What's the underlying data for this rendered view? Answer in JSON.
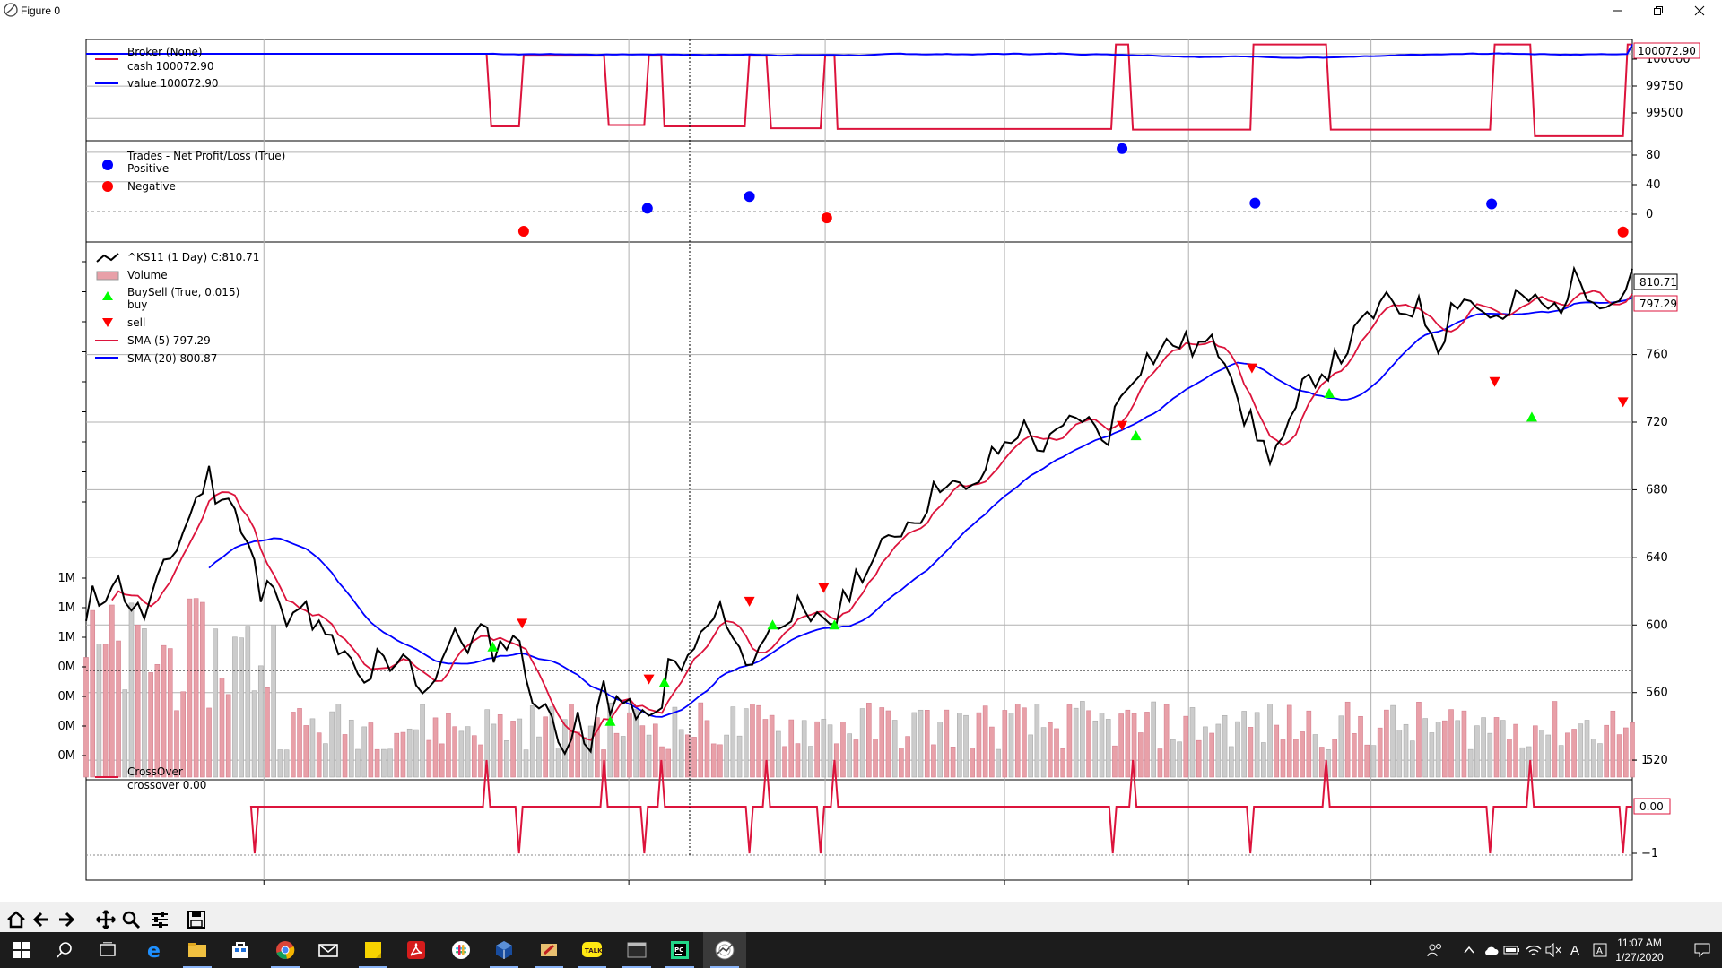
{
  "window": {
    "title": "Figure 0"
  },
  "panels": {
    "broker": {
      "legend_title": "Broker (None)",
      "cash_label": "cash 100072.90",
      "value_label": "value 100072.90",
      "y_ticks": [
        "99500",
        "99750",
        "100000"
      ],
      "last_value_tag": "100072.90"
    },
    "trades": {
      "legend_title": "Trades - Net Profit/Loss (True)",
      "positive_label": "Positive",
      "negative_label": "Negative",
      "y_ticks": [
        "0",
        "40",
        "80"
      ]
    },
    "price": {
      "legend_title": "^KS11 (1 Day) C:810.71",
      "volume_label": "Volume",
      "buysell_title": "BuySell (True, 0.015)",
      "buy_label": "buy",
      "sell_label": "sell",
      "sma5_label": "SMA (5) 797.29",
      "sma20_label": "SMA (20) 800.87",
      "y_ticks": [
        "520",
        "560",
        "600",
        "640",
        "680",
        "720",
        "760"
      ],
      "vol_ticks": [
        "0M",
        "0M",
        "0M",
        "0M",
        "1M",
        "1M",
        "1M"
      ],
      "close_tag": "810.71",
      "sma5_tag": "797.29",
      "sma20_tag": "800.87"
    },
    "crossover": {
      "legend_title": "CrossOver",
      "line_label": "crossover 0.00",
      "y_ticks": [
        "1",
        "−1"
      ],
      "last_value_tag": "0.00"
    }
  },
  "chart_data": [
    {
      "type": "line",
      "name": "broker",
      "series": [
        {
          "name": "cash",
          "color": "#dc143c",
          "segments": [
            [
              0,
              100000
            ],
            [
              0.259,
              100000
            ],
            [
              0.262,
              99440
            ],
            [
              0.28,
              99440
            ],
            [
              0.283,
              99985
            ],
            [
              0.335,
              99985
            ],
            [
              0.338,
              99450
            ],
            [
              0.361,
              99450
            ],
            [
              0.364,
              99985
            ],
            [
              0.372,
              99985
            ],
            [
              0.374,
              99440
            ],
            [
              0.426,
              99440
            ],
            [
              0.429,
              99985
            ],
            [
              0.44,
              99985
            ],
            [
              0.443,
              99425
            ],
            [
              0.475,
              99425
            ],
            [
              0.478,
              99985
            ],
            [
              0.484,
              99985
            ],
            [
              0.486,
              99420
            ],
            [
              0.663,
              99420
            ],
            [
              0.666,
              100072
            ],
            [
              0.674,
              100072
            ],
            [
              0.677,
              99415
            ],
            [
              0.753,
              99415
            ],
            [
              0.755,
              100072
            ],
            [
              0.802,
              100072
            ],
            [
              0.805,
              99415
            ],
            [
              0.908,
              99415
            ],
            [
              0.911,
              100072
            ],
            [
              0.934,
              100072
            ],
            [
              0.937,
              99365
            ],
            [
              0.994,
              99365
            ],
            [
              0.997,
              100072
            ],
            [
              1,
              100072
            ]
          ]
        },
        {
          "name": "value",
          "color": "#0000ff",
          "final": 100072.9
        }
      ],
      "ylim": [
        99350,
        100090
      ]
    },
    {
      "type": "scatter",
      "name": "trades",
      "series": [
        {
          "name": "Positive",
          "color": "#0000ff",
          "points": [
            [
              0.363,
              4
            ],
            [
              0.429,
              20
            ],
            [
              0.67,
              85
            ],
            [
              0.756,
              11
            ],
            [
              0.909,
              10
            ]
          ]
        },
        {
          "name": "Negative",
          "color": "#ff0000",
          "points": [
            [
              0.283,
              -27
            ],
            [
              0.479,
              -9
            ],
            [
              0.994,
              -28
            ]
          ]
        }
      ],
      "ylim": [
        -38,
        92
      ]
    },
    {
      "type": "line",
      "name": "price",
      "series": [
        {
          "name": "^KS11 close",
          "color": "#000000"
        },
        {
          "name": "SMA (5)",
          "color": "#dc143c"
        },
        {
          "name": "SMA (20)",
          "color": "#0000ff"
        },
        {
          "name": "buy",
          "color": "#00ff00",
          "points": [
            [
              0.263,
              587
            ],
            [
              0.339,
              543
            ],
            [
              0.374,
              566
            ],
            [
              0.444,
              600
            ],
            [
              0.484,
              600
            ],
            [
              0.679,
              712
            ],
            [
              0.804,
              737
            ],
            [
              0.935,
              723
            ]
          ]
        },
        {
          "name": "sell",
          "color": "#ff0000",
          "points": [
            [
              0.282,
              601
            ],
            [
              0.364,
              568
            ],
            [
              0.429,
              614
            ],
            [
              0.477,
              622
            ],
            [
              0.67,
              718
            ],
            [
              0.754,
              752
            ],
            [
              0.911,
              744
            ],
            [
              0.994,
              732
            ]
          ]
        }
      ],
      "ylim": [
        510,
        825
      ],
      "last_close": 810.71
    },
    {
      "type": "line",
      "name": "crossover",
      "series": [
        {
          "name": "crossover",
          "color": "#dc143c",
          "events": [
            [
              0.109,
              -1
            ],
            [
              0.259,
              1
            ],
            [
              0.28,
              -1
            ],
            [
              0.335,
              1
            ],
            [
              0.361,
              -1
            ],
            [
              0.372,
              1
            ],
            [
              0.429,
              -1
            ],
            [
              0.44,
              1
            ],
            [
              0.475,
              -1
            ],
            [
              0.484,
              1
            ],
            [
              0.664,
              -1
            ],
            [
              0.677,
              1
            ],
            [
              0.753,
              -1
            ],
            [
              0.802,
              1
            ],
            [
              0.908,
              -1
            ],
            [
              0.934,
              1
            ],
            [
              0.994,
              -1
            ]
          ]
        }
      ],
      "ylim": [
        -1.05,
        1.05
      ]
    }
  ],
  "toolbar": {
    "home_icon": "home-icon",
    "back_icon": "arrow-left-icon",
    "forward_icon": "arrow-right-icon",
    "pan_icon": "move-icon",
    "zoom_icon": "magnifier-icon",
    "configure_icon": "sliders-icon",
    "save_icon": "floppy-icon"
  },
  "taskbar": {
    "time": "11:07 AM",
    "date": "1/27/2020",
    "lang": "A"
  },
  "colors": {
    "red": "#dc143c",
    "blue": "#0000ff",
    "buy": "#00ff00",
    "sell": "#ff0000",
    "vol_up": "#e8a0a8",
    "vol_down": "#cccccc"
  }
}
